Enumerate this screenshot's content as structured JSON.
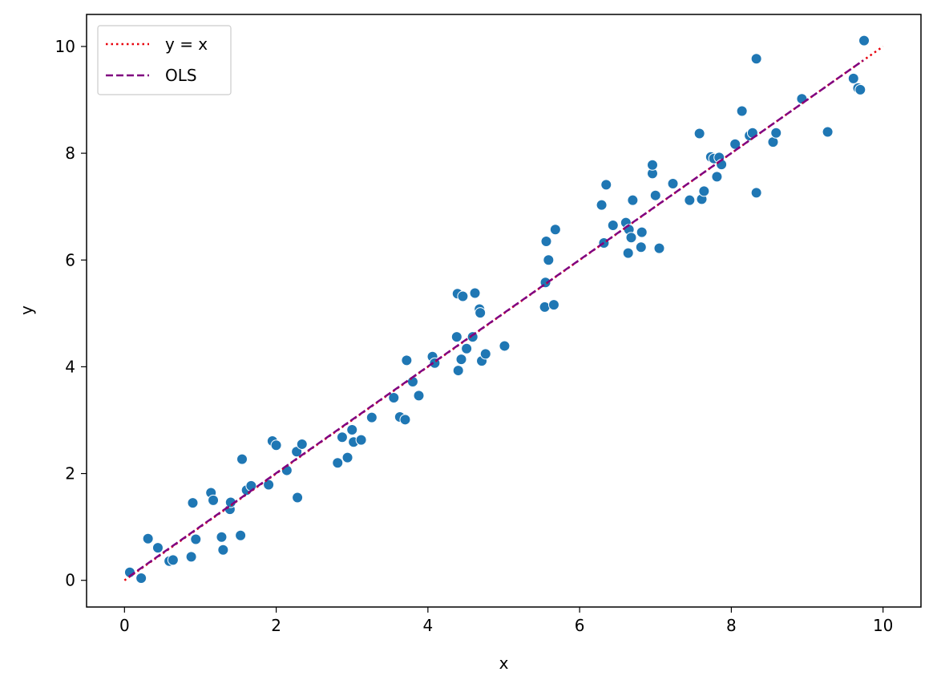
{
  "chart_data": {
    "type": "scatter",
    "title": "",
    "xlabel": "x",
    "ylabel": "y",
    "xlim": [
      -0.5,
      10.5
    ],
    "ylim": [
      -0.5,
      10.6
    ],
    "xticks": [
      0,
      2,
      4,
      6,
      8,
      10
    ],
    "yticks": [
      0,
      2,
      4,
      6,
      8,
      10
    ],
    "grid": false,
    "legend_position": "top-left",
    "colors": {
      "points": "#1f77b4",
      "identity": "#e8000b",
      "ols": "#800080"
    },
    "lines": [
      {
        "name": "y = x",
        "style": "dotted",
        "x": [
          0,
          10
        ],
        "y": [
          0,
          10
        ]
      },
      {
        "name": "OLS",
        "style": "dashed",
        "x": [
          0.06,
          9.74
        ],
        "y": [
          0.07,
          9.74
        ]
      }
    ],
    "points": [
      [
        0.07,
        0.15
      ],
      [
        0.22,
        0.04
      ],
      [
        0.31,
        0.78
      ],
      [
        0.44,
        0.61
      ],
      [
        0.59,
        0.36
      ],
      [
        0.64,
        0.38
      ],
      [
        0.88,
        0.44
      ],
      [
        0.9,
        1.45
      ],
      [
        0.94,
        0.77
      ],
      [
        1.14,
        1.64
      ],
      [
        1.17,
        1.5
      ],
      [
        1.28,
        0.81
      ],
      [
        1.3,
        0.57
      ],
      [
        1.39,
        1.33
      ],
      [
        1.4,
        1.46
      ],
      [
        1.53,
        0.84
      ],
      [
        1.55,
        2.27
      ],
      [
        1.61,
        1.69
      ],
      [
        1.67,
        1.77
      ],
      [
        1.9,
        1.79
      ],
      [
        1.95,
        2.61
      ],
      [
        2.0,
        2.53
      ],
      [
        2.14,
        2.06
      ],
      [
        2.27,
        2.41
      ],
      [
        2.28,
        1.55
      ],
      [
        2.34,
        2.55
      ],
      [
        2.81,
        2.2
      ],
      [
        2.87,
        2.68
      ],
      [
        2.94,
        2.3
      ],
      [
        3.0,
        2.82
      ],
      [
        3.02,
        2.59
      ],
      [
        3.12,
        2.63
      ],
      [
        3.26,
        3.05
      ],
      [
        3.55,
        3.42
      ],
      [
        3.63,
        3.06
      ],
      [
        3.7,
        3.01
      ],
      [
        3.72,
        4.12
      ],
      [
        3.8,
        3.72
      ],
      [
        3.88,
        3.46
      ],
      [
        4.06,
        4.19
      ],
      [
        4.09,
        4.07
      ],
      [
        4.38,
        4.56
      ],
      [
        4.39,
        5.37
      ],
      [
        4.4,
        3.93
      ],
      [
        4.44,
        4.14
      ],
      [
        4.46,
        5.32
      ],
      [
        4.51,
        4.34
      ],
      [
        4.59,
        4.56
      ],
      [
        4.62,
        5.38
      ],
      [
        4.68,
        5.08
      ],
      [
        4.69,
        5.01
      ],
      [
        4.71,
        4.11
      ],
      [
        4.76,
        4.24
      ],
      [
        5.01,
        4.39
      ],
      [
        5.54,
        5.12
      ],
      [
        5.55,
        5.58
      ],
      [
        5.56,
        6.35
      ],
      [
        5.59,
        6.0
      ],
      [
        5.66,
        5.16
      ],
      [
        5.68,
        6.57
      ],
      [
        6.29,
        7.03
      ],
      [
        6.32,
        6.32
      ],
      [
        6.35,
        7.41
      ],
      [
        6.44,
        6.65
      ],
      [
        6.61,
        6.7
      ],
      [
        6.64,
        6.13
      ],
      [
        6.65,
        6.57
      ],
      [
        6.68,
        6.42
      ],
      [
        6.7,
        7.12
      ],
      [
        6.81,
        6.24
      ],
      [
        6.82,
        6.52
      ],
      [
        6.96,
        7.62
      ],
      [
        6.96,
        7.78
      ],
      [
        7.0,
        7.21
      ],
      [
        7.05,
        6.22
      ],
      [
        7.23,
        7.43
      ],
      [
        7.45,
        7.12
      ],
      [
        7.58,
        8.37
      ],
      [
        7.61,
        7.14
      ],
      [
        7.64,
        7.29
      ],
      [
        7.73,
        7.93
      ],
      [
        7.77,
        7.9
      ],
      [
        7.81,
        7.56
      ],
      [
        7.84,
        7.92
      ],
      [
        7.87,
        7.79
      ],
      [
        8.05,
        8.17
      ],
      [
        8.14,
        8.79
      ],
      [
        8.24,
        8.33
      ],
      [
        8.28,
        8.38
      ],
      [
        8.33,
        7.26
      ],
      [
        8.33,
        9.77
      ],
      [
        8.55,
        8.21
      ],
      [
        8.59,
        8.38
      ],
      [
        8.93,
        9.02
      ],
      [
        9.27,
        8.4
      ],
      [
        9.61,
        9.4
      ],
      [
        9.67,
        9.22
      ],
      [
        9.7,
        9.19
      ],
      [
        9.75,
        10.11
      ]
    ]
  }
}
